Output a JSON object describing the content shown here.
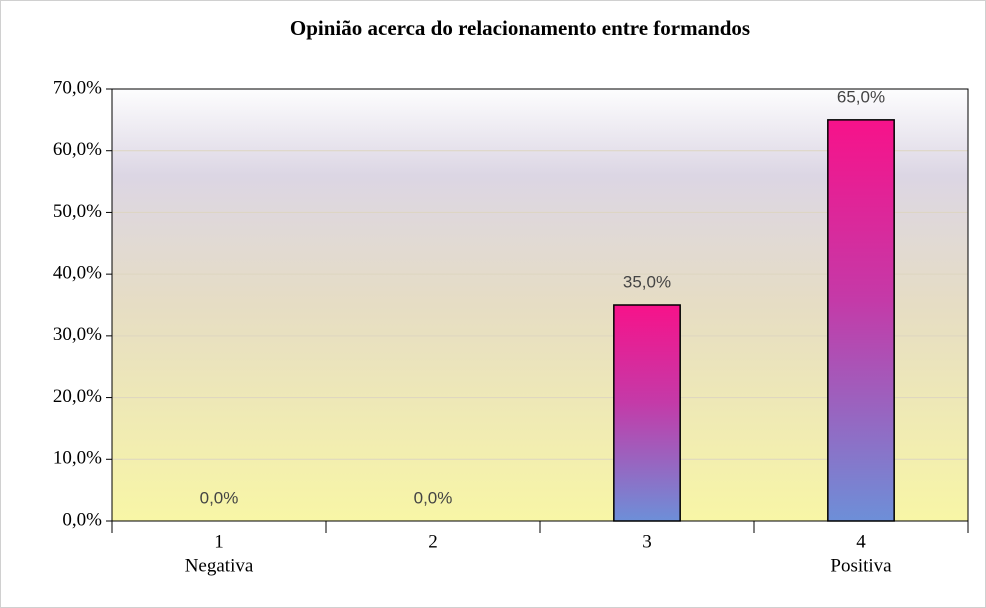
{
  "chart_data": {
    "type": "bar",
    "title": "Opinião acerca do relacionamento entre formandos",
    "categories": [
      "1",
      "2",
      "3",
      "4"
    ],
    "category_sublabels": [
      "Negativa",
      null,
      null,
      "Positiva"
    ],
    "values": [
      0,
      0,
      35,
      65
    ],
    "value_labels": [
      "0,0%",
      "0,0%",
      "35,0%",
      "65,0%"
    ],
    "color": "#f7128a",
    "ylim": [
      0,
      70
    ],
    "yticks": [
      {
        "value": 0,
        "label": "0,0%"
      },
      {
        "value": 10,
        "label": "10,0%"
      },
      {
        "value": 20,
        "label": "20,0%"
      },
      {
        "value": 30,
        "label": "30,0%"
      },
      {
        "value": 40,
        "label": "40,0%"
      },
      {
        "value": 50,
        "label": "50,0%"
      },
      {
        "value": 60,
        "label": "60,0%"
      },
      {
        "value": 70,
        "label": "70,0%"
      }
    ],
    "grid": true
  }
}
